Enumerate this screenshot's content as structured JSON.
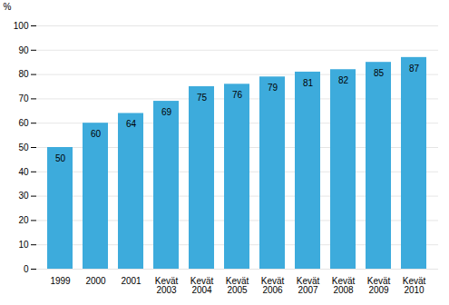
{
  "chart_data": {
    "type": "bar",
    "categories": [
      "1999",
      "2000",
      "2001",
      "Kevät\n2003",
      "Kevät\n2004",
      "Kevät\n2005",
      "Kevät\n2006",
      "Kevät\n2007",
      "Kevät\n2008",
      "Kevät\n2009",
      "Kevät\n2010"
    ],
    "values": [
      50,
      60,
      64,
      69,
      75,
      76,
      79,
      81,
      82,
      85,
      87
    ],
    "color": "#3dabdc",
    "ylabel": "%",
    "ylim": [
      0,
      100
    ],
    "yticks": [
      0,
      10,
      20,
      30,
      40,
      50,
      60,
      70,
      80,
      90,
      100
    ],
    "grid": true,
    "data_labels": true
  }
}
